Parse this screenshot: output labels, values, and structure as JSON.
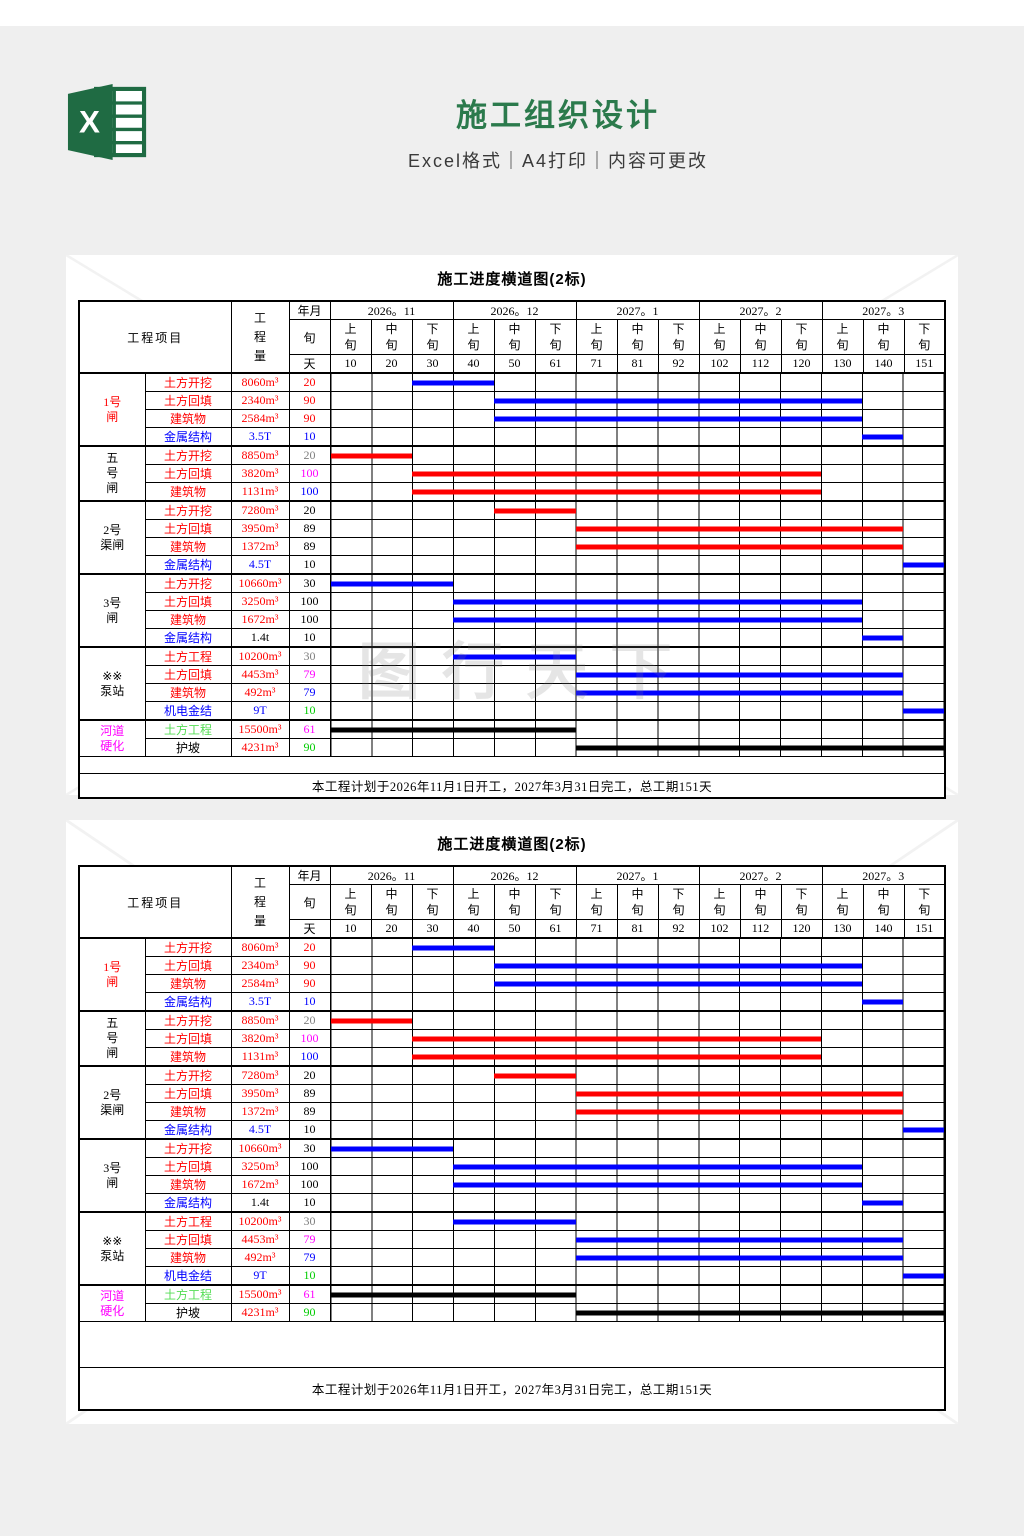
{
  "page": {
    "title": "施工组织设计",
    "subtitle": "Excel格式｜A4打印｜内容可更改",
    "title_color": "#2b7a4c",
    "excel_icon_green": "#1f6b43",
    "excel_icon_letter": "X"
  },
  "watermark": {
    "text": "图行天下"
  },
  "colors": {
    "red": "#ff0000",
    "blue": "#0000ff",
    "black": "#000000",
    "magenta": "#ff00ff",
    "green": "#00cc00",
    "ltgreen": "#55dd55",
    "gray": "#808080"
  },
  "chart_data": {
    "type": "table",
    "title": "施工进度横道图(2标)",
    "corner_label": "工程项目",
    "qty_label": "工程量",
    "row_labels": {
      "ym": "年月",
      "xun": "旬",
      "day": "天"
    },
    "months": [
      "2026。11",
      "2026。12",
      "2027。1",
      "2027。2",
      "2027。3"
    ],
    "periods": [
      "上旬",
      "中旬",
      "下旬"
    ],
    "day_ticks": [
      "10",
      "20",
      "30",
      "40",
      "50",
      "61",
      "71",
      "81",
      "92",
      "102",
      "112",
      "120",
      "130",
      "140",
      "151"
    ],
    "groups": [
      {
        "label": "1号闸",
        "lines": [
          "1号",
          "闸"
        ],
        "color": "red",
        "rows": 4
      },
      {
        "label": "五号闸",
        "lines": [
          "五",
          "号",
          "闸"
        ],
        "color": "black",
        "rows": 3
      },
      {
        "label": "2号渠闸",
        "lines": [
          "2号",
          "渠闸"
        ],
        "color": "black",
        "rows": 4
      },
      {
        "label": "3号闸",
        "lines": [
          "3号",
          "闸"
        ],
        "color": "black",
        "rows": 4
      },
      {
        "label": "※※泵站",
        "lines": [
          "※※",
          "泵站"
        ],
        "color": "black",
        "rows": 4
      },
      {
        "label": "河道硬化",
        "lines": [
          "河道",
          "硬化"
        ],
        "color": "magenta",
        "rows": 2
      }
    ],
    "rows": [
      {
        "task": "土方开挖",
        "task_color": "red",
        "qty": "8060m³",
        "qty_color": "red",
        "days": "20",
        "days_color": "red",
        "bar_start": 3,
        "bar_span": 2,
        "bar_color": "blue"
      },
      {
        "task": "土方回填",
        "task_color": "red",
        "qty": "2340m³",
        "qty_color": "red",
        "days": "90",
        "days_color": "red",
        "bar_start": 5,
        "bar_span": 9,
        "bar_color": "blue"
      },
      {
        "task": "建筑物",
        "task_color": "red",
        "qty": "2584m³",
        "qty_color": "red",
        "days": "90",
        "days_color": "red",
        "bar_start": 5,
        "bar_span": 9,
        "bar_color": "blue"
      },
      {
        "task": "金属结构",
        "task_color": "blue",
        "qty": "3.5T",
        "qty_color": "blue",
        "days": "10",
        "days_color": "blue",
        "bar_start": 14,
        "bar_span": 1,
        "bar_color": "blue"
      },
      {
        "task": "土方开挖",
        "task_color": "red",
        "qty": "8850m³",
        "qty_color": "red",
        "days": "20",
        "days_color": "gray",
        "bar_start": 1,
        "bar_span": 2,
        "bar_color": "red"
      },
      {
        "task": "土方回填",
        "task_color": "red",
        "qty": "3820m³",
        "qty_color": "red",
        "days": "100",
        "days_color": "magenta",
        "bar_start": 3,
        "bar_span": 10,
        "bar_color": "red"
      },
      {
        "task": "建筑物",
        "task_color": "red",
        "qty": "1131m³",
        "qty_color": "red",
        "days": "100",
        "days_color": "blue",
        "bar_start": 3,
        "bar_span": 10,
        "bar_color": "red"
      },
      {
        "task": "土方开挖",
        "task_color": "red",
        "qty": "7280m³",
        "qty_color": "red",
        "days": "20",
        "days_color": "black",
        "bar_start": 5,
        "bar_span": 2,
        "bar_color": "red"
      },
      {
        "task": "土方回填",
        "task_color": "red",
        "qty": "3950m³",
        "qty_color": "red",
        "days": "89",
        "days_color": "black",
        "bar_start": 7,
        "bar_span": 8,
        "bar_color": "red"
      },
      {
        "task": "建筑物",
        "task_color": "red",
        "qty": "1372m³",
        "qty_color": "red",
        "days": "89",
        "days_color": "black",
        "bar_start": 7,
        "bar_span": 8,
        "bar_color": "red"
      },
      {
        "task": "金属结构",
        "task_color": "blue",
        "qty": "4.5T",
        "qty_color": "blue",
        "days": "10",
        "days_color": "black",
        "bar_start": 15,
        "bar_span": 1,
        "bar_color": "blue"
      },
      {
        "task": "土方开挖",
        "task_color": "red",
        "qty": "10660m³",
        "qty_color": "red",
        "days": "30",
        "days_color": "black",
        "bar_start": 1,
        "bar_span": 3,
        "bar_color": "blue"
      },
      {
        "task": "土方回填",
        "task_color": "red",
        "qty": "3250m³",
        "qty_color": "red",
        "days": "100",
        "days_color": "black",
        "bar_start": 4,
        "bar_span": 10,
        "bar_color": "blue"
      },
      {
        "task": "建筑物",
        "task_color": "red",
        "qty": "1672m³",
        "qty_color": "red",
        "days": "100",
        "days_color": "black",
        "bar_start": 4,
        "bar_span": 10,
        "bar_color": "blue"
      },
      {
        "task": "金属结构",
        "task_color": "blue",
        "qty": "1.4t",
        "qty_color": "black",
        "days": "10",
        "days_color": "black",
        "bar_start": 14,
        "bar_span": 1,
        "bar_color": "blue"
      },
      {
        "task": "土方工程",
        "task_color": "red",
        "qty": "10200m³",
        "qty_color": "red",
        "days": "30",
        "days_color": "gray",
        "bar_start": 4,
        "bar_span": 3,
        "bar_color": "blue"
      },
      {
        "task": "土方回填",
        "task_color": "red",
        "qty": "4453m³",
        "qty_color": "red",
        "days": "79",
        "days_color": "magenta",
        "bar_start": 7,
        "bar_span": 8,
        "bar_color": "blue"
      },
      {
        "task": "建筑物",
        "task_color": "red",
        "qty": "492m³",
        "qty_color": "red",
        "days": "79",
        "days_color": "blue",
        "bar_start": 7,
        "bar_span": 8,
        "bar_color": "blue"
      },
      {
        "task": "机电金结",
        "task_color": "blue",
        "qty": "9T",
        "qty_color": "blue",
        "days": "10",
        "days_color": "green",
        "bar_start": 15,
        "bar_span": 1,
        "bar_color": "blue"
      },
      {
        "task": "土方工程",
        "task_color": "ltgreen",
        "qty": "15500m³",
        "qty_color": "red",
        "days": "61",
        "days_color": "magenta",
        "bar_start": 1,
        "bar_span": 6,
        "bar_color": "black"
      },
      {
        "task": "护坡",
        "task_color": "black",
        "qty": "4231m³",
        "qty_color": "red",
        "days": "90",
        "days_color": "green",
        "bar_start": 7,
        "bar_span": 9,
        "bar_color": "black"
      }
    ],
    "footnote": "本工程计划于2026年11月1日开工，2027年3月31日完工，总工期151天",
    "axis": {
      "total_columns": 15,
      "days_per_column": 10,
      "total_days": 151
    },
    "legend": "none",
    "grid": true
  }
}
